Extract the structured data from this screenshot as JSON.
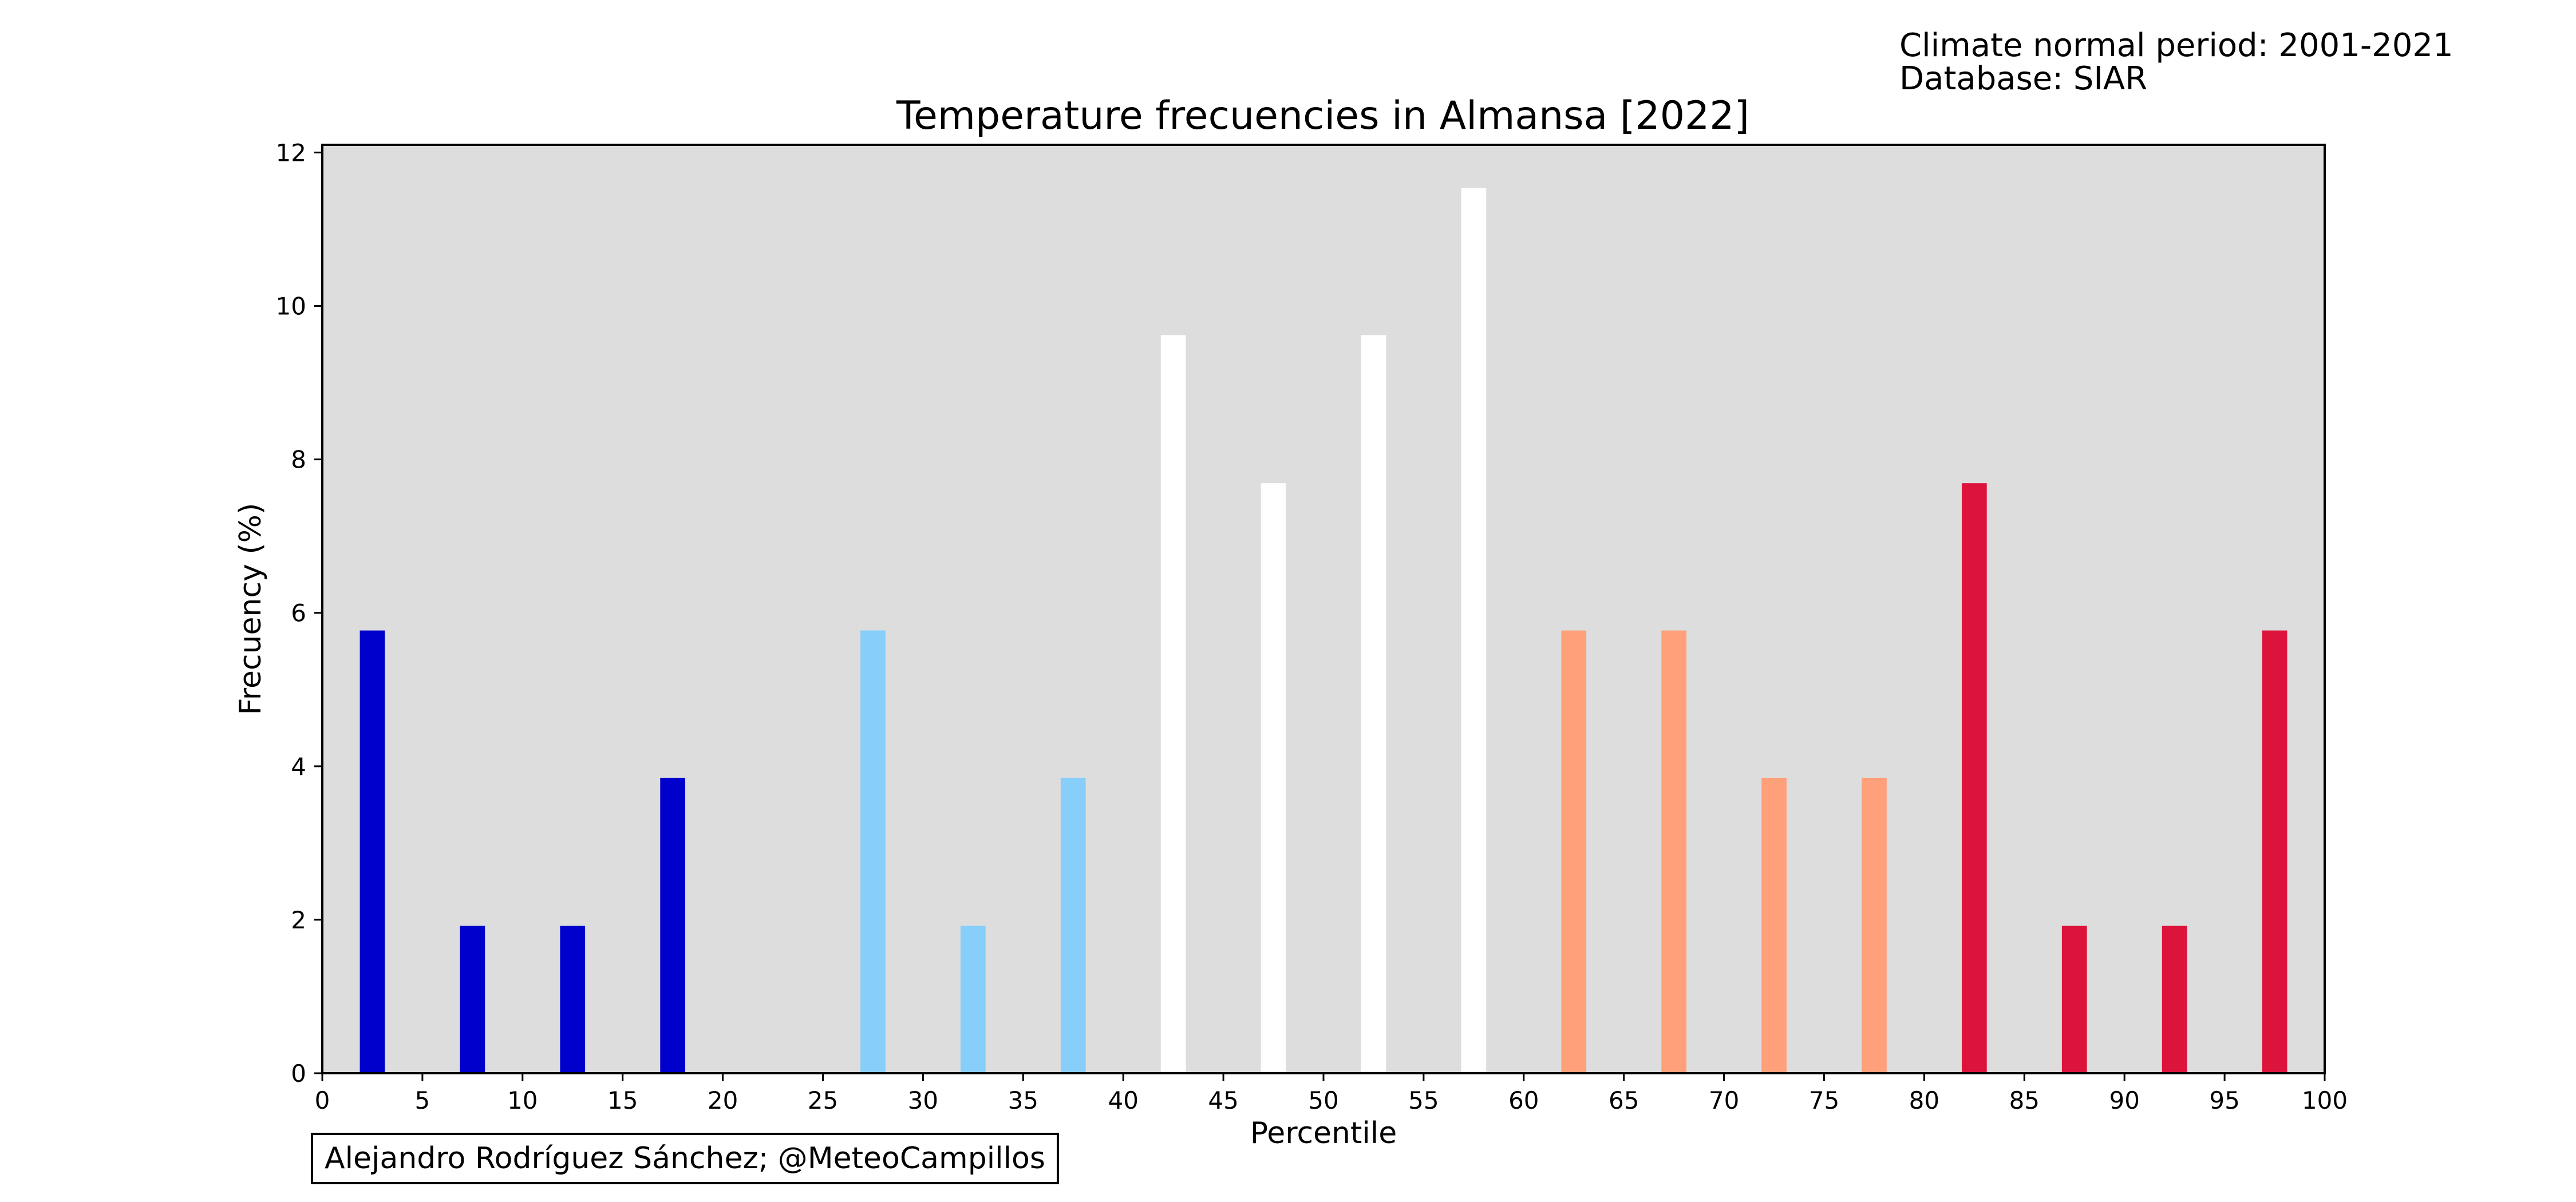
{
  "notes": {
    "period": "Climate normal period: 2001-2021",
    "database": "Database: SIAR"
  },
  "credit": "Alejandro Rodríguez Sánchez; @MeteoCampillos",
  "chart_data": {
    "type": "bar",
    "title": "Temperature frecuencies in Almansa [2022]",
    "xlabel": "Percentile",
    "ylabel": "Frecuency (%)",
    "xlim": [
      0,
      100
    ],
    "ylim": [
      0,
      12.1
    ],
    "xticks": [
      0,
      5,
      10,
      15,
      20,
      25,
      30,
      35,
      40,
      45,
      50,
      55,
      60,
      65,
      70,
      75,
      80,
      85,
      90,
      95,
      100
    ],
    "yticks": [
      0,
      2,
      4,
      6,
      8,
      10,
      12
    ],
    "bar_width": 1.25,
    "plot_background": "#dddddd",
    "x": [
      2.5,
      7.5,
      12.5,
      17.5,
      22.5,
      27.5,
      32.5,
      37.5,
      42.5,
      47.5,
      52.5,
      57.5,
      62.5,
      67.5,
      72.5,
      77.5,
      82.5,
      87.5,
      92.5,
      97.5
    ],
    "values": [
      5.77,
      1.92,
      1.92,
      3.85,
      0,
      5.77,
      1.92,
      3.85,
      9.62,
      7.69,
      9.62,
      11.54,
      5.77,
      5.77,
      3.85,
      3.85,
      7.69,
      1.92,
      1.92,
      5.77
    ],
    "colors": [
      "#0000cd",
      "#0000cd",
      "#0000cd",
      "#0000cd",
      "#0000cd",
      "#87cefa",
      "#87cefa",
      "#87cefa",
      "#ffffff",
      "#ffffff",
      "#ffffff",
      "#ffffff",
      "#ffa07a",
      "#ffa07a",
      "#ffa07a",
      "#ffa07a",
      "#dc143c",
      "#dc143c",
      "#dc143c",
      "#dc143c"
    ],
    "grid": false,
    "legend": "none"
  }
}
